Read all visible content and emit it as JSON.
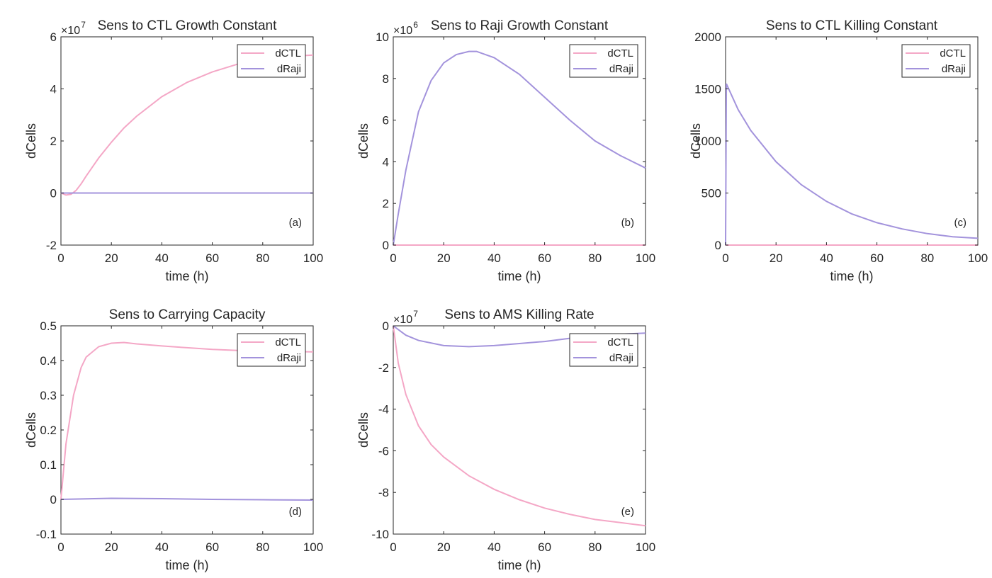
{
  "figure": {
    "legend_labels": [
      "dCTL",
      "dRaji"
    ],
    "series_colors": {
      "dCTL": "#f4a7c6",
      "dRaji": "#a393dc"
    }
  },
  "chart_data": [
    {
      "id": "a",
      "type": "line",
      "title": "Sens to CTL Growth Constant",
      "panel_label": "(a)",
      "xlabel": "time (h)",
      "ylabel": "dCells",
      "exponent_label": "×10",
      "exponent": "7",
      "xlim": [
        0,
        100
      ],
      "ylim": [
        -2,
        6
      ],
      "xticks": [
        0,
        20,
        40,
        60,
        80,
        100
      ],
      "yticks": [
        -2,
        0,
        2,
        4,
        6
      ],
      "legend": "top-right",
      "series": [
        {
          "name": "dCTL",
          "x": [
            0,
            2,
            4,
            6,
            8,
            10,
            15,
            20,
            25,
            30,
            40,
            50,
            60,
            70,
            80,
            90,
            100
          ],
          "y": [
            0,
            -0.08,
            -0.05,
            0.1,
            0.35,
            0.65,
            1.35,
            1.95,
            2.5,
            2.95,
            3.7,
            4.25,
            4.65,
            4.95,
            5.15,
            5.25,
            5.3
          ]
        },
        {
          "name": "dRaji",
          "x": [
            0,
            100
          ],
          "y": [
            0,
            0
          ]
        }
      ]
    },
    {
      "id": "b",
      "type": "line",
      "title": "Sens to Raji Growth Constant",
      "panel_label": "(b)",
      "xlabel": "time (h)",
      "ylabel": "dCells",
      "exponent_label": "×10",
      "exponent": "6",
      "xlim": [
        0,
        100
      ],
      "ylim": [
        0,
        10
      ],
      "xticks": [
        0,
        20,
        40,
        60,
        80,
        100
      ],
      "yticks": [
        0,
        2,
        4,
        6,
        8,
        10
      ],
      "legend": "top-right",
      "series": [
        {
          "name": "dCTL",
          "x": [
            0,
            100
          ],
          "y": [
            0,
            0
          ]
        },
        {
          "name": "dRaji",
          "x": [
            0,
            2,
            5,
            10,
            15,
            20,
            25,
            30,
            33,
            40,
            50,
            60,
            70,
            80,
            90,
            100
          ],
          "y": [
            0,
            1.5,
            3.6,
            6.4,
            7.9,
            8.75,
            9.15,
            9.3,
            9.3,
            9.0,
            8.2,
            7.1,
            6.0,
            5.0,
            4.3,
            3.7
          ]
        }
      ]
    },
    {
      "id": "c",
      "type": "line",
      "title": "Sens to CTL Killing Constant",
      "panel_label": "(c)",
      "xlabel": "time (h)",
      "ylabel": "dCells",
      "xlim": [
        0,
        100
      ],
      "ylim": [
        0,
        2000
      ],
      "xticks": [
        0,
        20,
        40,
        60,
        80,
        100
      ],
      "yticks": [
        0,
        500,
        1000,
        1500,
        2000
      ],
      "legend": "top-right",
      "series": [
        {
          "name": "dCTL",
          "x": [
            0,
            100
          ],
          "y": [
            0,
            0
          ]
        },
        {
          "name": "dRaji",
          "x": [
            0,
            0.3,
            5,
            10,
            20,
            30,
            40,
            50,
            60,
            70,
            80,
            90,
            100
          ],
          "y": [
            0,
            1550,
            1300,
            1100,
            800,
            580,
            420,
            300,
            215,
            155,
            110,
            80,
            65
          ]
        }
      ]
    },
    {
      "id": "d",
      "type": "line",
      "title": "Sens to Carrying Capacity",
      "panel_label": "(d)",
      "xlabel": "time (h)",
      "ylabel": "dCells",
      "xlim": [
        0,
        100
      ],
      "ylim": [
        -0.1,
        0.5
      ],
      "xticks": [
        0,
        20,
        40,
        60,
        80,
        100
      ],
      "yticks": [
        "-0.1",
        "0",
        "0.1",
        "0.2",
        "0.3",
        "0.4",
        "0.5"
      ],
      "legend": "top-right",
      "series": [
        {
          "name": "dCTL",
          "x": [
            0,
            2,
            5,
            8,
            10,
            15,
            20,
            25,
            30,
            40,
            50,
            60,
            70,
            80,
            90,
            100
          ],
          "y": [
            0,
            0.16,
            0.3,
            0.38,
            0.41,
            0.44,
            0.45,
            0.452,
            0.448,
            0.442,
            0.437,
            0.432,
            0.429,
            0.427,
            0.426,
            0.425
          ]
        },
        {
          "name": "dRaji",
          "x": [
            0,
            20,
            40,
            60,
            80,
            100
          ],
          "y": [
            0,
            0.003,
            0.002,
            0.0,
            -0.001,
            -0.002
          ]
        }
      ]
    },
    {
      "id": "e",
      "type": "line",
      "title": "Sens to AMS Killing Rate",
      "panel_label": "(e)",
      "xlabel": "time (h)",
      "ylabel": "dCells",
      "exponent_label": "×10",
      "exponent": "7",
      "xlim": [
        0,
        100
      ],
      "ylim": [
        -10,
        0
      ],
      "xticks": [
        0,
        20,
        40,
        60,
        80,
        100
      ],
      "yticks": [
        -10,
        -8,
        -6,
        -4,
        -2,
        0
      ],
      "legend": "top-right",
      "series": [
        {
          "name": "dCTL",
          "x": [
            0,
            2,
            5,
            10,
            15,
            20,
            30,
            40,
            50,
            60,
            70,
            80,
            90,
            100
          ],
          "y": [
            0,
            -1.8,
            -3.3,
            -4.8,
            -5.7,
            -6.3,
            -7.2,
            -7.85,
            -8.35,
            -8.75,
            -9.05,
            -9.3,
            -9.45,
            -9.6
          ]
        },
        {
          "name": "dRaji",
          "x": [
            0,
            5,
            10,
            20,
            30,
            40,
            50,
            60,
            70,
            80,
            90,
            100
          ],
          "y": [
            0,
            -0.45,
            -0.7,
            -0.95,
            -1.0,
            -0.95,
            -0.85,
            -0.75,
            -0.6,
            -0.5,
            -0.4,
            -0.35
          ]
        }
      ]
    }
  ]
}
